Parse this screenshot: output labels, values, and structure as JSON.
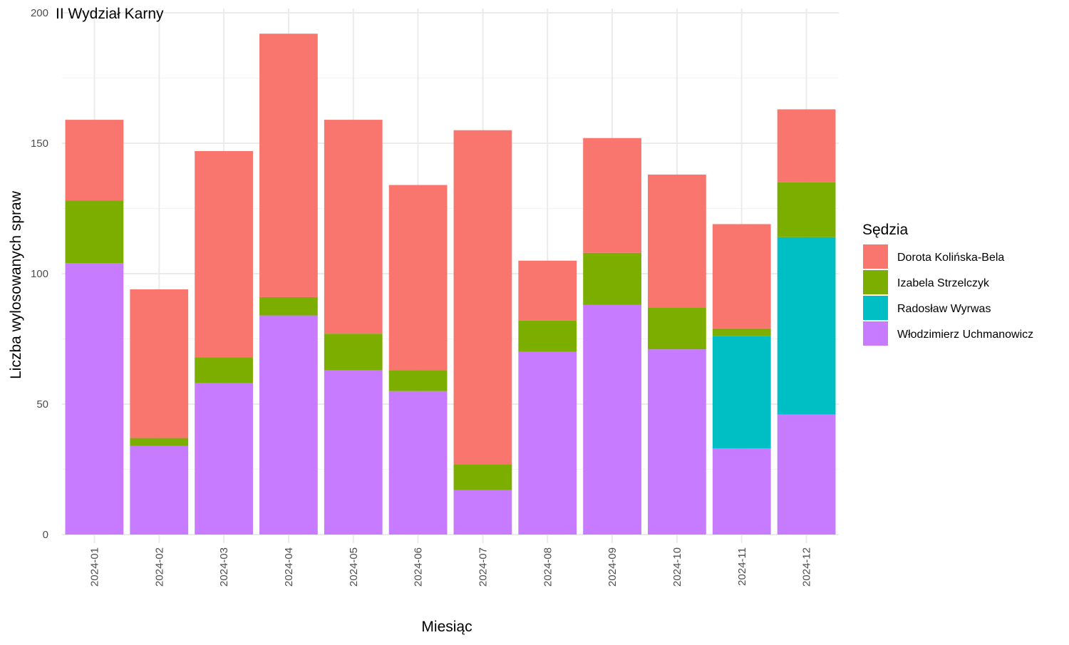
{
  "chart_data": {
    "type": "bar",
    "stacked": true,
    "title": "II Wydział Karny",
    "xlabel": "Miesiąc",
    "ylabel": "Liczba wylosowanych spraw",
    "ylim": [
      0,
      200
    ],
    "yticks": [
      0,
      50,
      100,
      150,
      200
    ],
    "grid": true,
    "legend_position": "right",
    "legend_title": "Sędzia",
    "categories": [
      "2024-01",
      "2024-02",
      "2024-03",
      "2024-04",
      "2024-05",
      "2024-06",
      "2024-07",
      "2024-08",
      "2024-09",
      "2024-10",
      "2024-11",
      "2024-12"
    ],
    "series": [
      {
        "name": "Dorota Kolińska-Bela",
        "color": "#F8766D",
        "values": [
          31,
          57,
          79,
          101,
          82,
          71,
          128,
          23,
          44,
          51,
          40,
          28
        ]
      },
      {
        "name": "Izabela Strzelczyk",
        "color": "#7CAE00",
        "values": [
          24,
          3,
          10,
          7,
          14,
          8,
          10,
          12,
          20,
          16,
          3,
          21
        ]
      },
      {
        "name": "Radosław Wyrwas",
        "color": "#00BFC4",
        "values": [
          0,
          0,
          0,
          0,
          0,
          0,
          0,
          0,
          0,
          0,
          43,
          68
        ]
      },
      {
        "name": "Włodzimierz Uchmanowicz",
        "color": "#C77CFF",
        "values": [
          104,
          34,
          58,
          84,
          63,
          55,
          17,
          70,
          88,
          71,
          33,
          46
        ]
      }
    ]
  }
}
